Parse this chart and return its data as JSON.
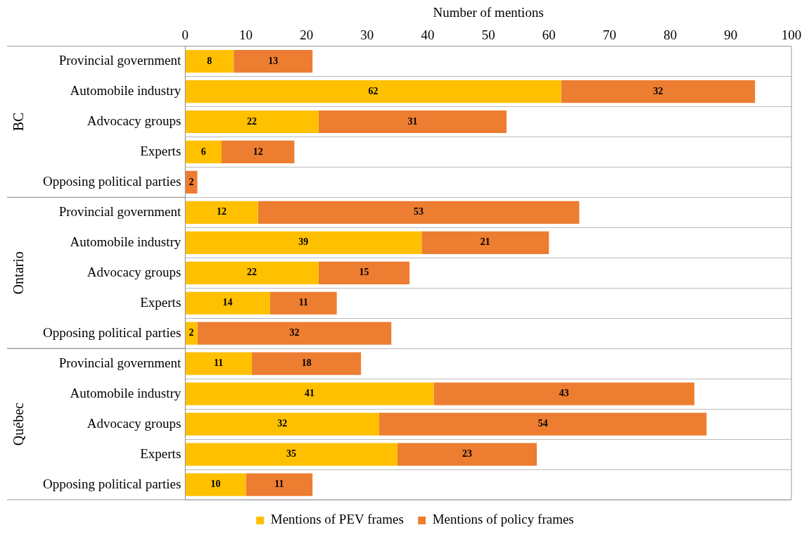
{
  "chart_data": {
    "type": "bar",
    "orientation": "horizontal",
    "stacked": true,
    "xlabel": "Number of mentions",
    "categories": [
      "Provincial government",
      "Automobile industry",
      "Advocacy groups",
      "Experts",
      "Opposing political parties",
      "Provincial government",
      "Automobile industry",
      "Advocacy groups",
      "Experts",
      "Opposing political parties",
      "Provincial government",
      "Automobile industry",
      "Advocacy groups",
      "Experts",
      "Opposing political parties"
    ],
    "series": [
      {
        "name": "Mentions of PEV frames",
        "color": "#ffc000",
        "values": [
          8,
          62,
          22,
          6,
          null,
          12,
          39,
          22,
          14,
          2,
          11,
          41,
          32,
          35,
          10
        ]
      },
      {
        "name": "Mentions of policy frames",
        "color": "#ed7d31",
        "values": [
          13,
          32,
          31,
          12,
          2,
          53,
          21,
          15,
          11,
          32,
          18,
          43,
          54,
          23,
          11
        ]
      }
    ],
    "xlim": [
      0,
      100
    ],
    "xticks": [
      0,
      10,
      20,
      30,
      40,
      50,
      60,
      70,
      80,
      90,
      100
    ],
    "annotations": [
      "BC",
      "Ontario",
      "Québec"
    ],
    "grid": "y",
    "legend": "bottom",
    "data_labels": true
  }
}
